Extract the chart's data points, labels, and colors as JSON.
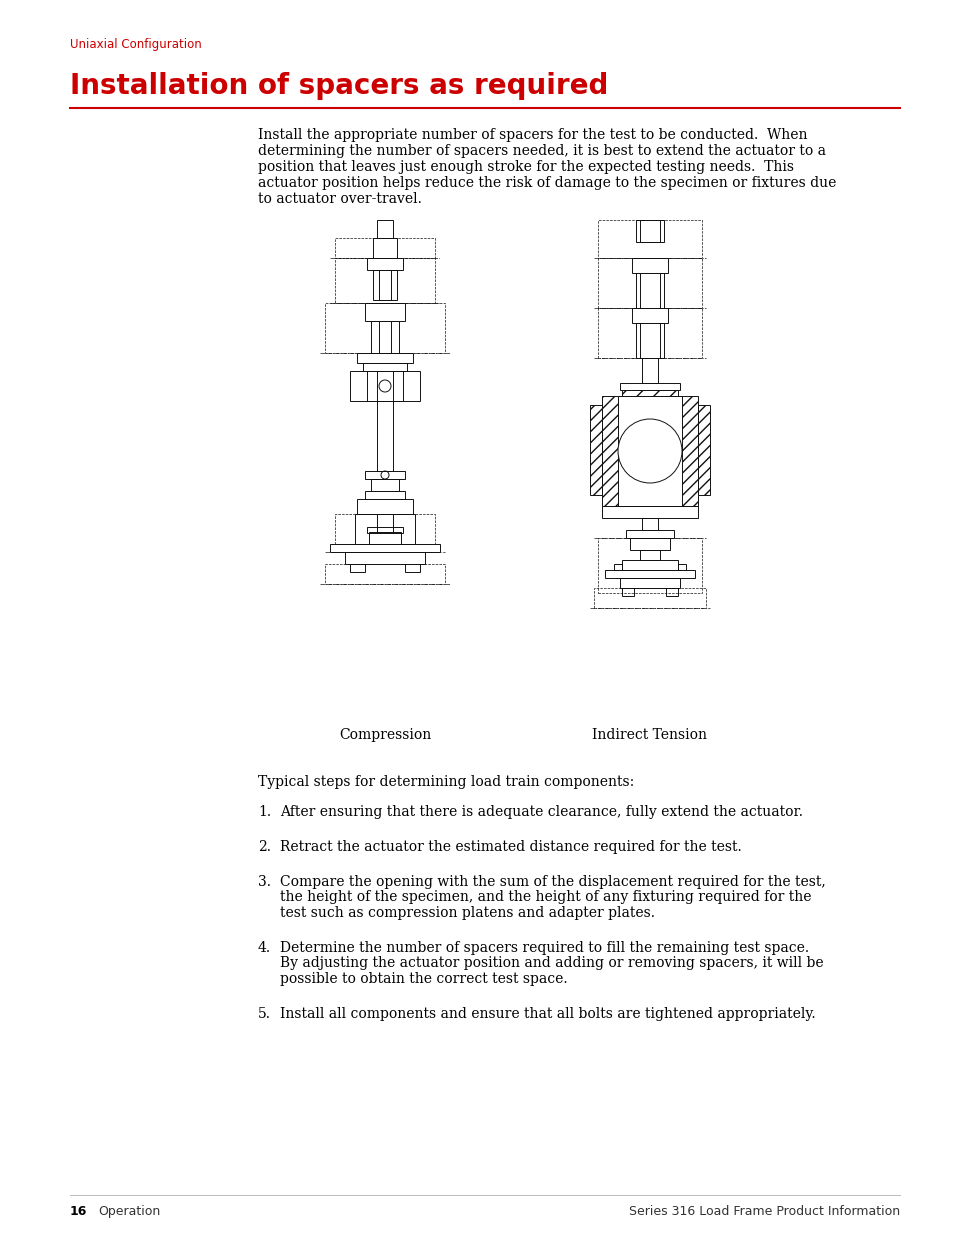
{
  "background_color": "#ffffff",
  "header_text": "Uniaxial Configuration",
  "header_color": "#cc0000",
  "header_fontsize": 8.5,
  "title_text": "Installation of spacers as required",
  "title_color": "#cc0000",
  "title_fontsize": 20,
  "rule_color": "#cc0000",
  "body_text": "Install the appropriate number of spacers for the test to be conducted.  When\ndetermining the number of spacers needed, it is best to extend the actuator to a\nposition that leaves just enough stroke for the expected testing needs.  This\nactuator position helps reduce the risk of damage to the specimen or fixtures due\nto actuator over-travel.",
  "body_fontsize": 10,
  "body_color": "#000000",
  "diagram_label_left": "Compression",
  "diagram_label_right": "Indirect Tension",
  "diagram_label_fontsize": 10,
  "steps_header": "Typical steps for determining load train components:",
  "steps_fontsize": 10,
  "step1": "After ensuring that there is adequate clearance, fully extend the actuator.",
  "step2": "Retract the actuator the estimated distance required for the test.",
  "step3a": "Compare the opening with the sum of the displacement required for the test,",
  "step3b": "the height of the specimen, and the height of any fixturing required for the",
  "step3c": "test such as compression platens and adapter plates.",
  "step4a": "Determine the number of spacers required to fill the remaining test space.",
  "step4b": "By adjusting the actuator position and adding or removing spacers, it will be",
  "step4c": "possible to obtain the correct test space.",
  "step5": "Install all components and ensure that all bolts are tightened appropriately.",
  "footer_page": "16",
  "footer_section": "Operation",
  "footer_right": "Series 316 Load Frame Product Information",
  "footer_fontsize": 9
}
